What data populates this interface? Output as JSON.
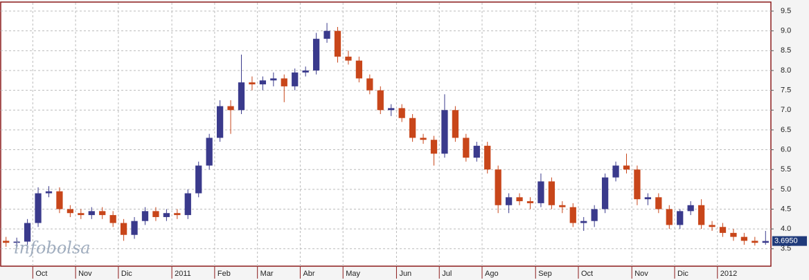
{
  "chart_data": {
    "type": "candlestick",
    "watermark": "infobolsa",
    "categories": [
      null,
      null,
      null,
      "Oct",
      null,
      null,
      null,
      "Nov",
      null,
      null,
      null,
      "Dic",
      null,
      null,
      null,
      null,
      "2011",
      null,
      null,
      null,
      "Feb",
      null,
      null,
      null,
      "Mar",
      null,
      null,
      null,
      "Abr",
      null,
      null,
      null,
      "May",
      null,
      null,
      null,
      null,
      "Jun",
      null,
      null,
      null,
      "Jul",
      null,
      null,
      null,
      "Ago",
      null,
      null,
      null,
      null,
      "Sep",
      null,
      null,
      null,
      "Oct",
      null,
      null,
      null,
      null,
      "Nov",
      null,
      null,
      null,
      "Dic",
      null,
      null,
      null,
      "2012",
      null,
      null,
      null,
      null
    ],
    "open": [
      3.7,
      3.65,
      3.68,
      4.15,
      4.9,
      4.95,
      4.5,
      4.4,
      4.35,
      4.45,
      4.35,
      4.15,
      3.85,
      4.2,
      4.45,
      4.3,
      4.4,
      4.35,
      4.9,
      5.6,
      6.3,
      7.1,
      7.0,
      7.7,
      7.65,
      7.75,
      7.8,
      7.6,
      7.95,
      8.0,
      8.8,
      9.0,
      8.35,
      8.25,
      7.8,
      7.5,
      7.0,
      7.05,
      6.8,
      6.3,
      6.25,
      5.9,
      7.0,
      6.3,
      5.8,
      6.1,
      5.5,
      4.6,
      4.8,
      4.7,
      4.65,
      5.2,
      4.6,
      4.55,
      4.15,
      4.2,
      4.5,
      5.3,
      5.6,
      5.5,
      4.75,
      4.8,
      4.5,
      4.1,
      4.45,
      4.6,
      4.1,
      4.05,
      3.9,
      3.8,
      3.7,
      3.65
    ],
    "high": [
      3.8,
      3.78,
      4.25,
      5.05,
      5.08,
      5.05,
      4.6,
      4.5,
      4.55,
      4.55,
      4.45,
      4.25,
      4.3,
      4.55,
      4.55,
      4.5,
      4.5,
      5.0,
      5.7,
      6.4,
      7.25,
      7.25,
      8.4,
      7.85,
      7.85,
      7.95,
      7.9,
      8.05,
      8.1,
      8.95,
      9.2,
      9.1,
      8.5,
      8.35,
      7.9,
      7.6,
      7.15,
      7.15,
      6.9,
      6.4,
      6.35,
      7.4,
      7.1,
      6.4,
      6.2,
      6.2,
      5.6,
      4.9,
      4.9,
      4.8,
      5.4,
      5.3,
      4.7,
      4.65,
      4.3,
      4.6,
      5.4,
      5.7,
      5.9,
      5.6,
      4.9,
      4.9,
      4.6,
      4.5,
      4.7,
      4.75,
      4.2,
      4.15,
      4.0,
      3.9,
      3.8,
      3.95
    ],
    "low": [
      3.55,
      3.55,
      3.6,
      4.05,
      4.8,
      4.4,
      4.3,
      4.25,
      4.25,
      4.25,
      4.05,
      3.7,
      3.75,
      4.1,
      4.2,
      4.2,
      4.25,
      4.25,
      4.8,
      5.5,
      6.2,
      6.4,
      6.9,
      7.5,
      7.5,
      7.6,
      7.2,
      7.5,
      7.85,
      7.9,
      8.7,
      8.2,
      8.15,
      7.7,
      7.4,
      6.9,
      6.85,
      6.7,
      6.2,
      6.15,
      5.6,
      5.8,
      6.2,
      5.7,
      5.7,
      5.4,
      4.4,
      4.4,
      4.6,
      4.5,
      4.55,
      4.5,
      4.4,
      4.05,
      3.95,
      4.05,
      4.4,
      5.2,
      5.4,
      4.6,
      4.6,
      4.4,
      4.0,
      4.0,
      4.35,
      4.0,
      3.95,
      3.8,
      3.7,
      3.6,
      3.58,
      3.6
    ],
    "close": [
      3.65,
      3.68,
      4.15,
      4.9,
      4.95,
      4.5,
      4.4,
      4.35,
      4.45,
      4.35,
      4.15,
      3.85,
      4.2,
      4.45,
      4.3,
      4.4,
      4.35,
      4.9,
      5.6,
      6.3,
      7.1,
      7.0,
      7.7,
      7.65,
      7.75,
      7.8,
      7.6,
      7.95,
      8.0,
      8.8,
      9.0,
      8.35,
      8.25,
      7.8,
      7.5,
      7.0,
      7.05,
      6.8,
      6.3,
      6.25,
      5.9,
      7.0,
      6.3,
      5.8,
      6.1,
      5.5,
      4.6,
      4.8,
      4.7,
      4.65,
      5.2,
      4.6,
      4.55,
      4.15,
      4.2,
      4.5,
      5.3,
      5.6,
      5.5,
      4.75,
      4.8,
      4.5,
      4.1,
      4.45,
      4.6,
      4.1,
      4.05,
      3.9,
      3.8,
      3.7,
      3.65,
      3.695
    ],
    "up_color": "#3a3a8c",
    "down_color": "#c8461a",
    "last_value": {
      "value": 3.695,
      "label": "3.6950"
    },
    "ylim": [
      3.06,
      9.71
    ],
    "yticks": [
      {
        "value": 3.5,
        "label": "3.5"
      },
      {
        "value": 4,
        "label": "4.0"
      },
      {
        "value": 4.5,
        "label": "4.5"
      },
      {
        "value": 5,
        "label": "5.0"
      },
      {
        "value": 5.5,
        "label": "5.5"
      },
      {
        "value": 6,
        "label": "6.0"
      },
      {
        "value": 6.5,
        "label": "6.5"
      },
      {
        "value": 7,
        "label": "7.0"
      },
      {
        "value": 7.5,
        "label": "7.5"
      },
      {
        "value": 8,
        "label": "8.0"
      },
      {
        "value": 8.5,
        "label": "8.5"
      },
      {
        "value": 9,
        "label": "9.0"
      },
      {
        "value": 9.5,
        "label": "9.5"
      }
    ],
    "grid": true
  }
}
